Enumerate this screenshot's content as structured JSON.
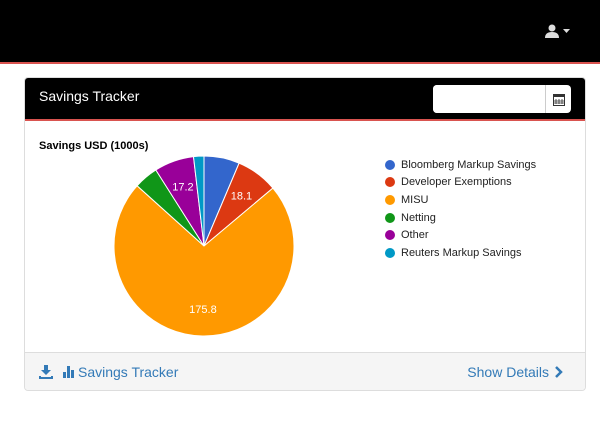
{
  "navbar": {
    "user_icon": "user-icon",
    "caret_icon": "caret-down-icon"
  },
  "panel": {
    "title": "Savings Tracker",
    "date_value": "",
    "calendar_icon": "calendar-icon"
  },
  "chart_data": {
    "type": "pie",
    "title": "Savings USD (1000s)",
    "categories": [
      "Bloomberg Markup Savings",
      "Developer Exemptions",
      "MISU",
      "Netting",
      "Other",
      "Reuters Markup Savings"
    ],
    "values": [
      15.4,
      18.1,
      175.8,
      10.5,
      17.2,
      4.5
    ],
    "data_labels": [
      "",
      "18.1",
      "175.8",
      "",
      "17.2",
      ""
    ],
    "colors": [
      "#3366cc",
      "#dc3912",
      "#ff9900",
      "#109618",
      "#990099",
      "#0099c6"
    ],
    "legend": "right"
  },
  "footer": {
    "download_icon": "download-icon",
    "chart_icon": "bar-chart-icon",
    "link": "Savings Tracker",
    "details": "Show Details",
    "chevron_icon": "chevron-right-icon"
  }
}
